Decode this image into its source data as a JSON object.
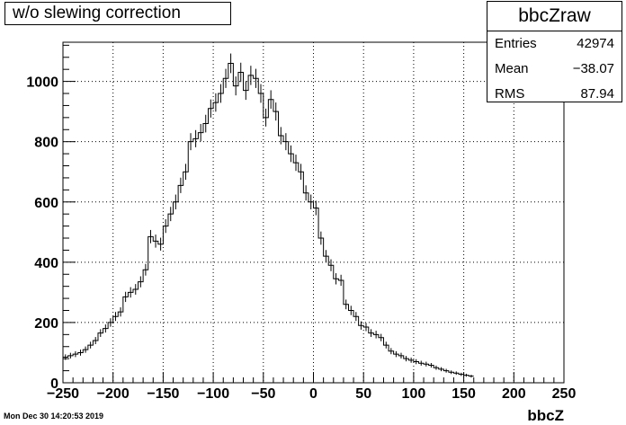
{
  "title": "w/o slewing correction",
  "stats": {
    "name": "bbcZraw",
    "rows": [
      {
        "label": "Entries",
        "value": "42974"
      },
      {
        "label": "Mean",
        "value": "−38.07"
      },
      {
        "label": "RMS",
        "value": "87.94"
      }
    ]
  },
  "timestamp": "Mon Dec 30 14:20:53 2019",
  "chart_data": {
    "type": "bar",
    "histogram": true,
    "title": "w/o slewing correction",
    "xlabel": "bbcZ",
    "ylabel": "",
    "xlim": [
      -250,
      250
    ],
    "ylim": [
      0,
      1130
    ],
    "xticks": [
      -250,
      -200,
      -150,
      -100,
      -50,
      0,
      50,
      100,
      150,
      200,
      250
    ],
    "yticks": [
      0,
      200,
      400,
      600,
      800,
      1000
    ],
    "grid": true,
    "bin_width": 5,
    "bin_start": -250,
    "values": [
      85,
      90,
      95,
      100,
      110,
      125,
      140,
      165,
      180,
      200,
      220,
      235,
      285,
      300,
      310,
      335,
      375,
      485,
      470,
      460,
      520,
      560,
      600,
      655,
      700,
      800,
      810,
      830,
      860,
      910,
      930,
      960,
      1010,
      1060,
      985,
      1030,
      970,
      1020,
      1010,
      960,
      880,
      940,
      900,
      820,
      800,
      760,
      730,
      700,
      630,
      600,
      580,
      480,
      420,
      390,
      345,
      340,
      260,
      240,
      220,
      190,
      185,
      165,
      160,
      150,
      125,
      105,
      95,
      90,
      80,
      75,
      70,
      65,
      62,
      58,
      50,
      45,
      40,
      35,
      32,
      28,
      25,
      22
    ]
  }
}
